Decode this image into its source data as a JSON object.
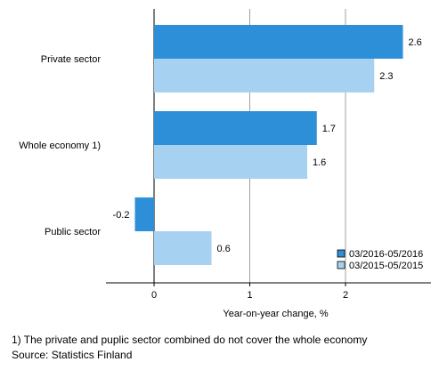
{
  "chart_data": {
    "type": "bar",
    "orientation": "horizontal",
    "categories": [
      "Private sector",
      "Whole economy 1)",
      "Public sector"
    ],
    "series": [
      {
        "name": "03/2016-05/2016",
        "values": [
          2.6,
          1.7,
          -0.2
        ],
        "color": "#2e8fd9"
      },
      {
        "name": "03/2015-05/2015",
        "values": [
          2.3,
          1.6,
          0.6
        ],
        "color": "#a6d1f0"
      }
    ],
    "xlabel": "Year-on-year change, %",
    "xlim": [
      -0.5,
      2.8
    ],
    "xticks": [
      0,
      1,
      2
    ],
    "grid": true,
    "legend_position": "bottom-right",
    "data_labels": true
  },
  "footnote": "1) The private and puplic sector combined do not cover the whole economy",
  "source": "Source: Statistics Finland"
}
